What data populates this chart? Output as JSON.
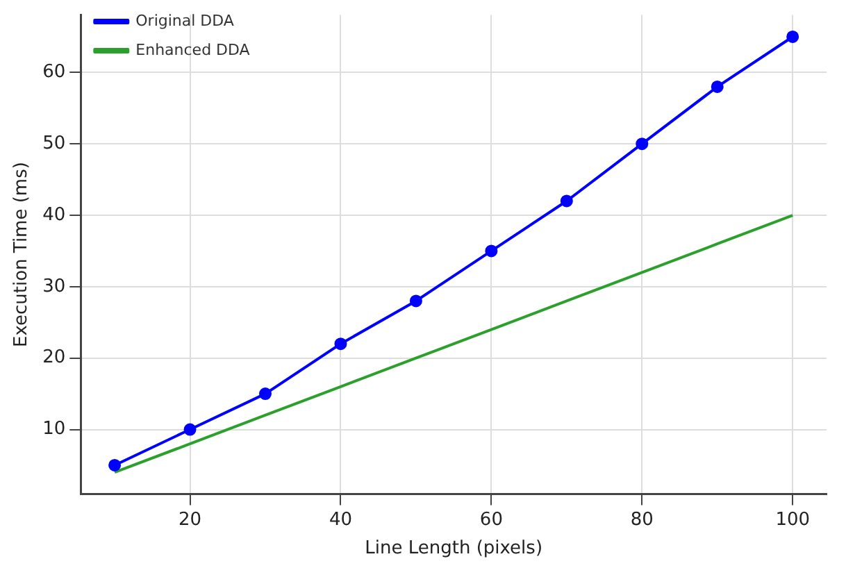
{
  "chart_data": {
    "type": "line",
    "xlabel": "Line Length (pixels)",
    "ylabel": "Execution Time (ms)",
    "x": [
      10,
      20,
      30,
      40,
      50,
      60,
      70,
      80,
      90,
      100
    ],
    "series": [
      {
        "name": "Original DDA",
        "color": "#0000ff",
        "marker": "circle",
        "values": [
          5,
          10,
          15,
          22,
          28,
          35,
          42,
          50,
          58,
          65
        ]
      },
      {
        "name": "Enhanced DDA",
        "color": "#2ca02c",
        "marker": "none",
        "values": [
          4,
          8,
          12,
          16,
          20,
          24,
          28,
          32,
          36,
          40
        ]
      }
    ],
    "xlim": [
      5.5,
      104.5
    ],
    "xticks": [
      20,
      40,
      60,
      80,
      100
    ],
    "ylim": [
      0.95,
      68.05
    ],
    "yticks": [
      10,
      20,
      30,
      40,
      50,
      60
    ],
    "grid": true,
    "legend": "top left",
    "line_style": "solid"
  }
}
